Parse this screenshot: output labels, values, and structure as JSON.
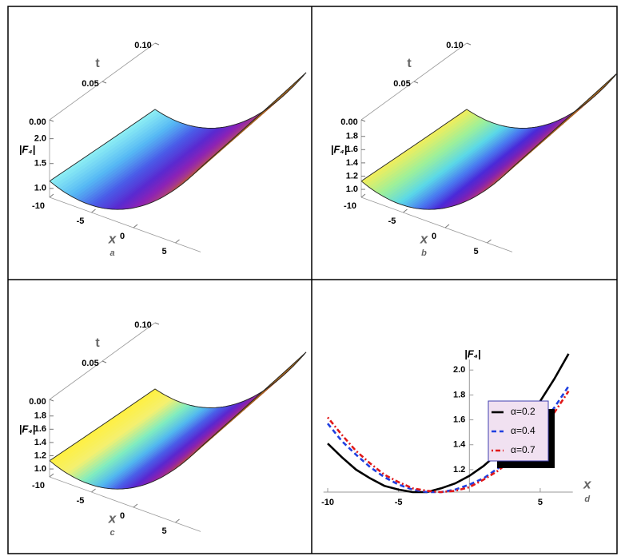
{
  "chart_data": [
    {
      "type": "surface3d",
      "caption": "a",
      "x_label": "x",
      "t_label": "t",
      "z_label": "|F₄|",
      "xlim": [
        -10,
        8
      ],
      "tlim": [
        0,
        0.1
      ],
      "zlim": [
        0.82,
        2.38
      ],
      "xticks": [
        -10,
        -5,
        0,
        5
      ],
      "tticks": [
        {
          "value": 0,
          "label": "0.00"
        },
        {
          "value": 0.05,
          "label": "0.05"
        },
        {
          "value": 0.1,
          "label": "0.10"
        }
      ],
      "zticks": [
        {
          "value": 1,
          "label": "1.0"
        },
        1.5,
        {
          "value": 2,
          "label": "2.0"
        }
      ],
      "colormap": [
        "#8ff0f4",
        "#56b8f4",
        "#4a5ce8",
        "#5a2ad0",
        "#8a22b8",
        "#a83a8a",
        "#b85a3a",
        "#9a6a1a"
      ]
    },
    {
      "type": "surface3d",
      "caption": "b",
      "x_label": "x",
      "t_label": "t",
      "z_label": "|F₄|",
      "xlim": [
        -10,
        8
      ],
      "tlim": [
        0,
        0.1
      ],
      "zlim": [
        0.88,
        2.05
      ],
      "xticks": [
        -10,
        -5,
        0,
        5
      ],
      "tticks": [
        {
          "value": 0,
          "label": "0.00"
        },
        {
          "value": 0.05,
          "label": "0.05"
        },
        {
          "value": 0.1,
          "label": "0.10"
        }
      ],
      "zticks": [
        {
          "value": 1,
          "label": "1.0"
        },
        1.2,
        1.4,
        1.6,
        1.8
      ],
      "colormap": [
        "#f4ee5a",
        "#9ef09a",
        "#5ad8e8",
        "#4a7cf0",
        "#4a2ad8",
        "#7a22b8",
        "#a8308a",
        "#b85a3a",
        "#9a6a1a"
      ]
    },
    {
      "type": "surface3d",
      "caption": "c",
      "x_label": "x",
      "t_label": "t",
      "z_label": "|F₄|",
      "xlim": [
        -10,
        8
      ],
      "tlim": [
        0,
        0.1
      ],
      "zlim": [
        0.88,
        2.05
      ],
      "xticks": [
        -10,
        -5,
        0,
        5
      ],
      "tticks": [
        {
          "value": 0,
          "label": "0.00"
        },
        {
          "value": 0.05,
          "label": "0.05"
        },
        {
          "value": 0.1,
          "label": "0.10"
        }
      ],
      "zticks": [
        {
          "value": 1,
          "label": "1.0"
        },
        1.2,
        1.4,
        1.6,
        1.8
      ],
      "colormap": [
        "#fff040",
        "#f4f070",
        "#80ecc0",
        "#52b8f0",
        "#4a5ce8",
        "#5a28d0",
        "#8a22b0",
        "#a8387a",
        "#b85a30",
        "#9a6a1a"
      ]
    },
    {
      "type": "line",
      "caption": "d",
      "x_label": "x",
      "y_label": "|F₄|",
      "xlim": [
        -10.3,
        7.3
      ],
      "ylim": [
        1.02,
        2.2
      ],
      "xticks": [
        -10,
        -5,
        5
      ],
      "yticks": [
        1.2,
        1.4,
        1.6,
        1.8,
        {
          "value": 2,
          "label": "2.0"
        }
      ],
      "x": [
        -10,
        -9,
        -8,
        -7,
        -6,
        -5,
        -4,
        -3,
        -2,
        -1,
        0,
        1,
        2,
        3,
        4,
        5,
        6,
        7
      ],
      "series": [
        {
          "name": "α=0.2",
          "color": "#000000",
          "dash": "none",
          "values": [
            1.41,
            1.3,
            1.2,
            1.13,
            1.07,
            1.04,
            1.02,
            1.02,
            1.05,
            1.09,
            1.15,
            1.23,
            1.33,
            1.45,
            1.59,
            1.75,
            1.93,
            2.13
          ]
        },
        {
          "name": "α=0.4",
          "color": "#1f3fe0",
          "dash": "6,4",
          "values": [
            1.57,
            1.43,
            1.32,
            1.22,
            1.14,
            1.08,
            1.04,
            1.02,
            1.02,
            1.04,
            1.08,
            1.13,
            1.21,
            1.3,
            1.41,
            1.55,
            1.7,
            1.87
          ]
        },
        {
          "name": "α=0.7",
          "color": "#e01818",
          "dash": "2,3,6,3",
          "values": [
            1.62,
            1.48,
            1.35,
            1.25,
            1.16,
            1.1,
            1.05,
            1.03,
            1.02,
            1.03,
            1.06,
            1.12,
            1.19,
            1.28,
            1.39,
            1.51,
            1.66,
            1.83
          ]
        }
      ]
    }
  ]
}
